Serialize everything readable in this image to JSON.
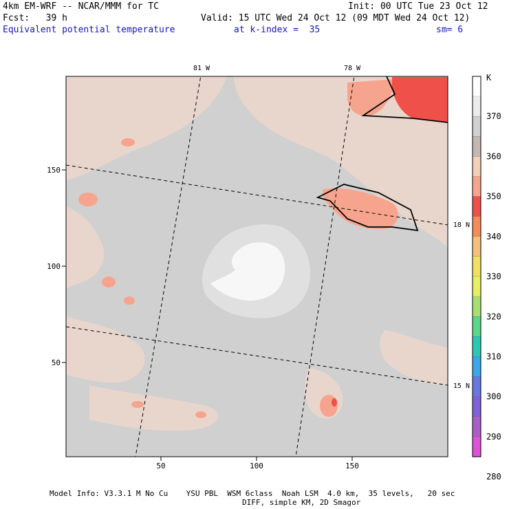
{
  "header": {
    "model": "4km EM-WRF -- NCAR/MMM for TC",
    "init": "Init: 00 UTC Tue 23 Oct 12",
    "fcst": "Fcst:   39 h",
    "valid": "Valid: 15 UTC Wed 24 Oct 12 (09 MDT Wed 24 Oct 12)",
    "field": "Equivalent potential temperature",
    "level": "at k-index =  35",
    "smooth": "sm= 6"
  },
  "map": {
    "x_axis_ticks": [
      "50",
      "100",
      "150"
    ],
    "y_axis_ticks": [
      "150",
      "100",
      "50"
    ],
    "lon_labels": [
      "81 W",
      "78 W"
    ],
    "lat_labels": [
      "18 N",
      "15 N"
    ]
  },
  "colorbar": {
    "unit": "K",
    "levels": [
      "370",
      "360",
      "350",
      "340",
      "330",
      "320",
      "310",
      "300",
      "290",
      "280"
    ],
    "colors": [
      "#ffffff",
      "#ececec",
      "#d0d0d0",
      "#c4b8b0",
      "#f2cfb6",
      "#f7a48e",
      "#f0504a",
      "#f58a5a",
      "#f7c07a",
      "#f2e060",
      "#e6f060",
      "#a8e070",
      "#58d888",
      "#2ac8b4",
      "#38a8e8",
      "#6878e0",
      "#8060d8",
      "#a860c8",
      "#e050d8"
    ]
  },
  "footer": {
    "line1": "Model Info: V3.3.1 M No Cu    YSU PBL  WSM 6class  Noah LSM  4.0 km,  35 levels,   20 sec",
    "line2": "DIFF, simple KM, 2D Smagor"
  }
}
